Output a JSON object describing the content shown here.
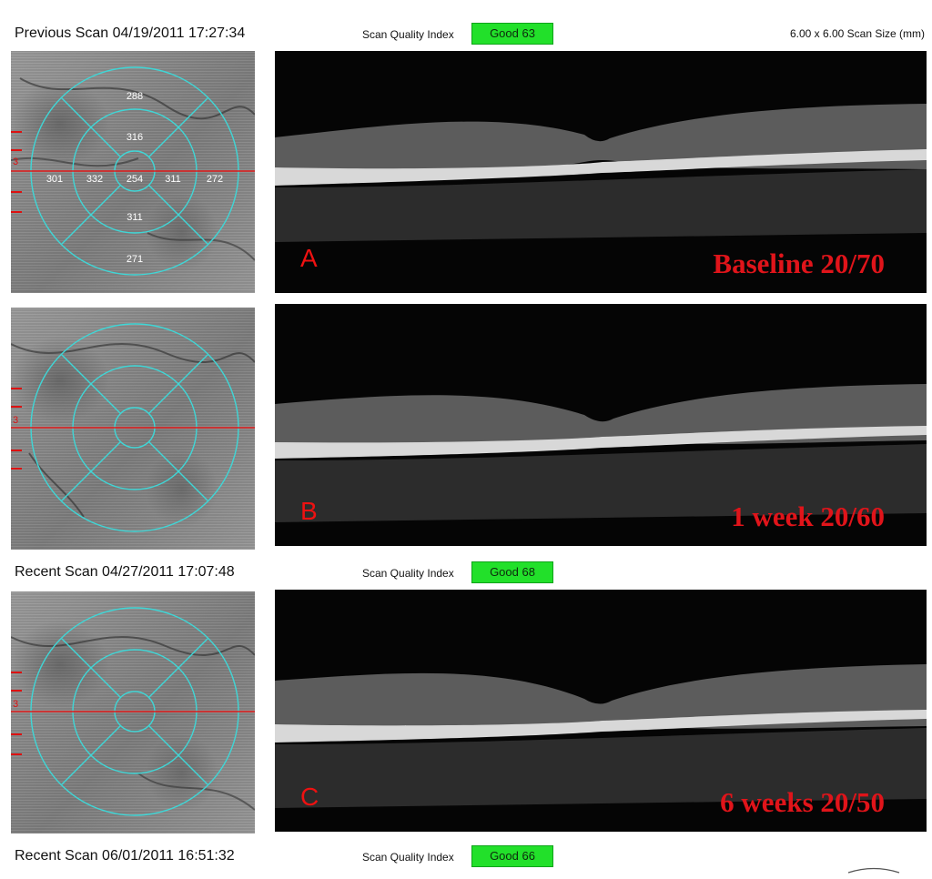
{
  "headers": [
    {
      "title": "Previous Scan 04/19/2011 17:27:34",
      "sqi_label": "Scan Quality Index",
      "sqi_value": "Good  63",
      "scan_size": "6.00 x 6.00 Scan Size (mm)"
    },
    {
      "title": "Recent Scan 04/27/2011 17:07:48",
      "sqi_label": "Scan Quality Index",
      "sqi_value": "Good  68"
    },
    {
      "title": "Recent Scan 06/01/2011 16:51:32",
      "sqi_label": "Scan Quality Index",
      "sqi_value": "Good  66"
    }
  ],
  "panels": [
    {
      "letter": "A",
      "visit": "Baseline  20/70",
      "etdrs": {
        "center": "254",
        "inner_top": "316",
        "inner_left": "332",
        "inner_right": "311",
        "inner_bottom": "311",
        "outer_top": "288",
        "outer_left": "301",
        "outer_right": "272",
        "outer_bottom": "271"
      }
    },
    {
      "letter": "B",
      "visit": "1 week  20/60"
    },
    {
      "letter": "C",
      "visit": "6 weeks  20/50"
    }
  ],
  "scan_line_marker": "3",
  "colors": {
    "sqi_badge": "#22e02a",
    "grid": "#3fd6d6",
    "scan_line": "#e11d1d",
    "label_red": "#e0141a"
  }
}
